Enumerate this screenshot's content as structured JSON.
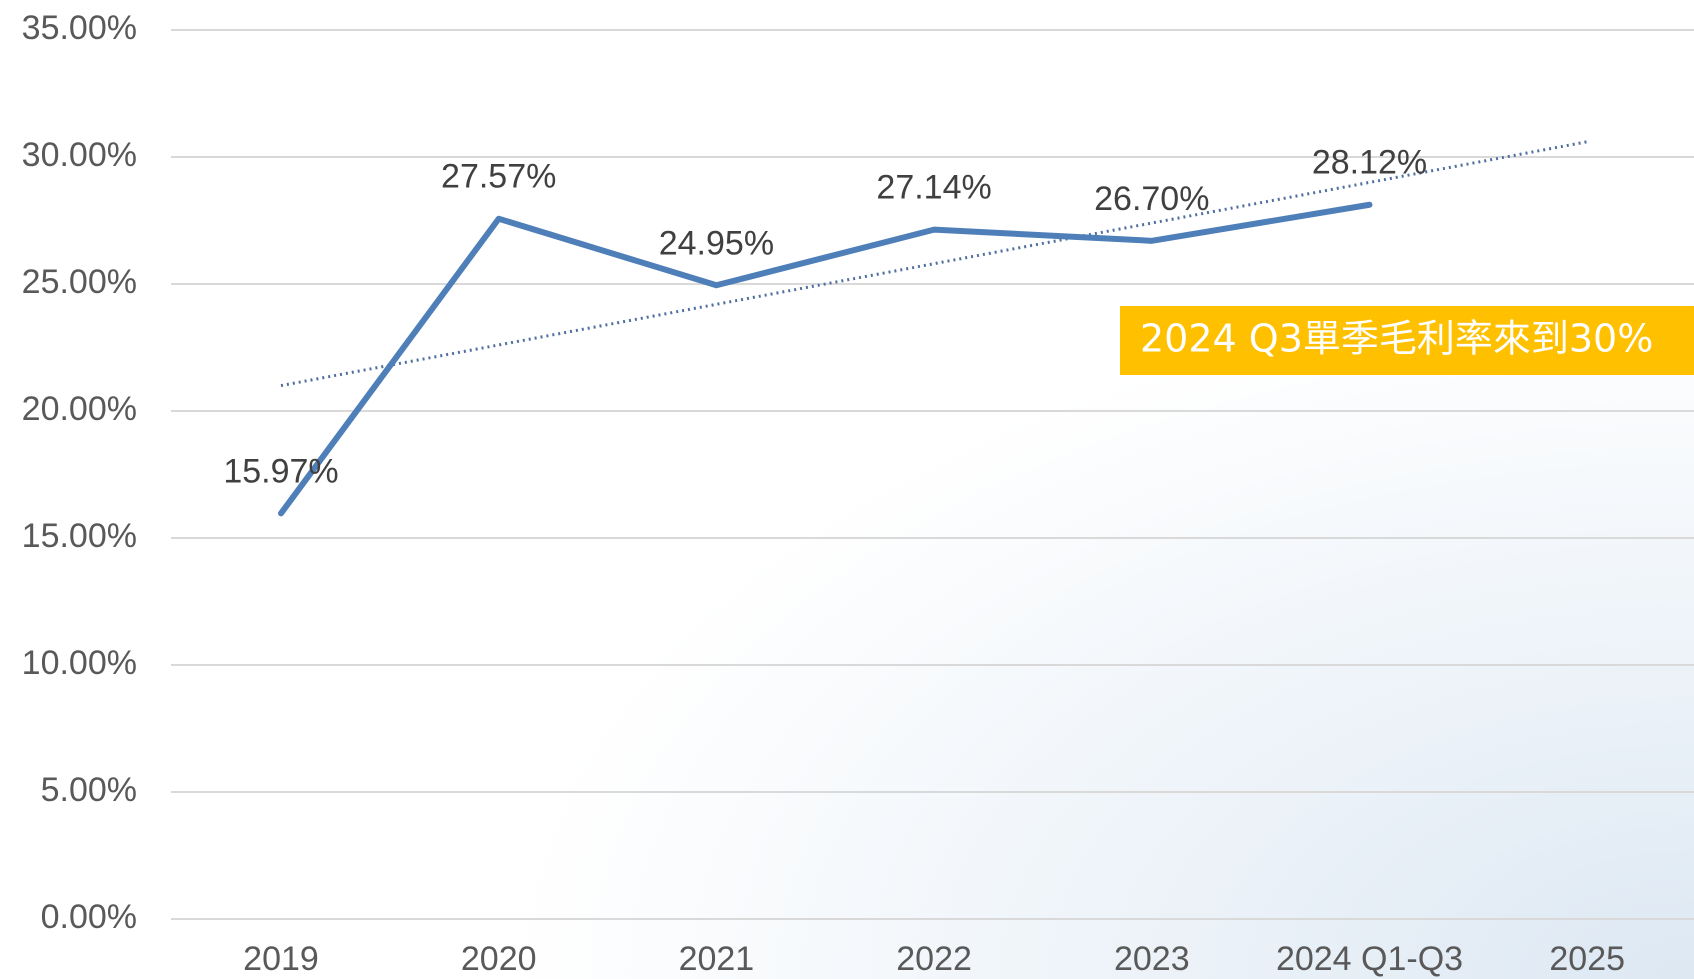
{
  "chart_data": {
    "type": "line",
    "categories": [
      "2019",
      "2020",
      "2021",
      "2022",
      "2023",
      "2024 Q1-Q3",
      "2025"
    ],
    "series": [
      {
        "color": "#4f7fb8",
        "values": [
          15.97,
          27.57,
          24.95,
          27.14,
          26.7,
          28.12,
          null
        ],
        "value_labels": [
          "15.97%",
          "27.57%",
          "24.95%",
          "27.14%",
          "26.70%",
          "28.12%",
          null
        ]
      }
    ],
    "trendline": {
      "color": "#4f6fa0",
      "style": "dotted",
      "values": [
        21.0,
        22.6,
        24.2,
        25.8,
        27.4,
        29.0,
        30.6
      ]
    },
    "ylim": [
      0,
      35
    ],
    "yticks": [
      {
        "value": 0,
        "label": "0.00%"
      },
      {
        "value": 5,
        "label": "5.00%"
      },
      {
        "value": 10,
        "label": "10.00%"
      },
      {
        "value": 15,
        "label": "15.00%"
      },
      {
        "value": 20,
        "label": "20.00%"
      },
      {
        "value": 25,
        "label": "25.00%"
      },
      {
        "value": 30,
        "label": "30.00%"
      },
      {
        "value": 35,
        "label": "35.00%"
      }
    ],
    "grid": true,
    "annotation": {
      "text": "2024 Q3單季毛利率來到30%",
      "color": "#ffc000"
    }
  }
}
